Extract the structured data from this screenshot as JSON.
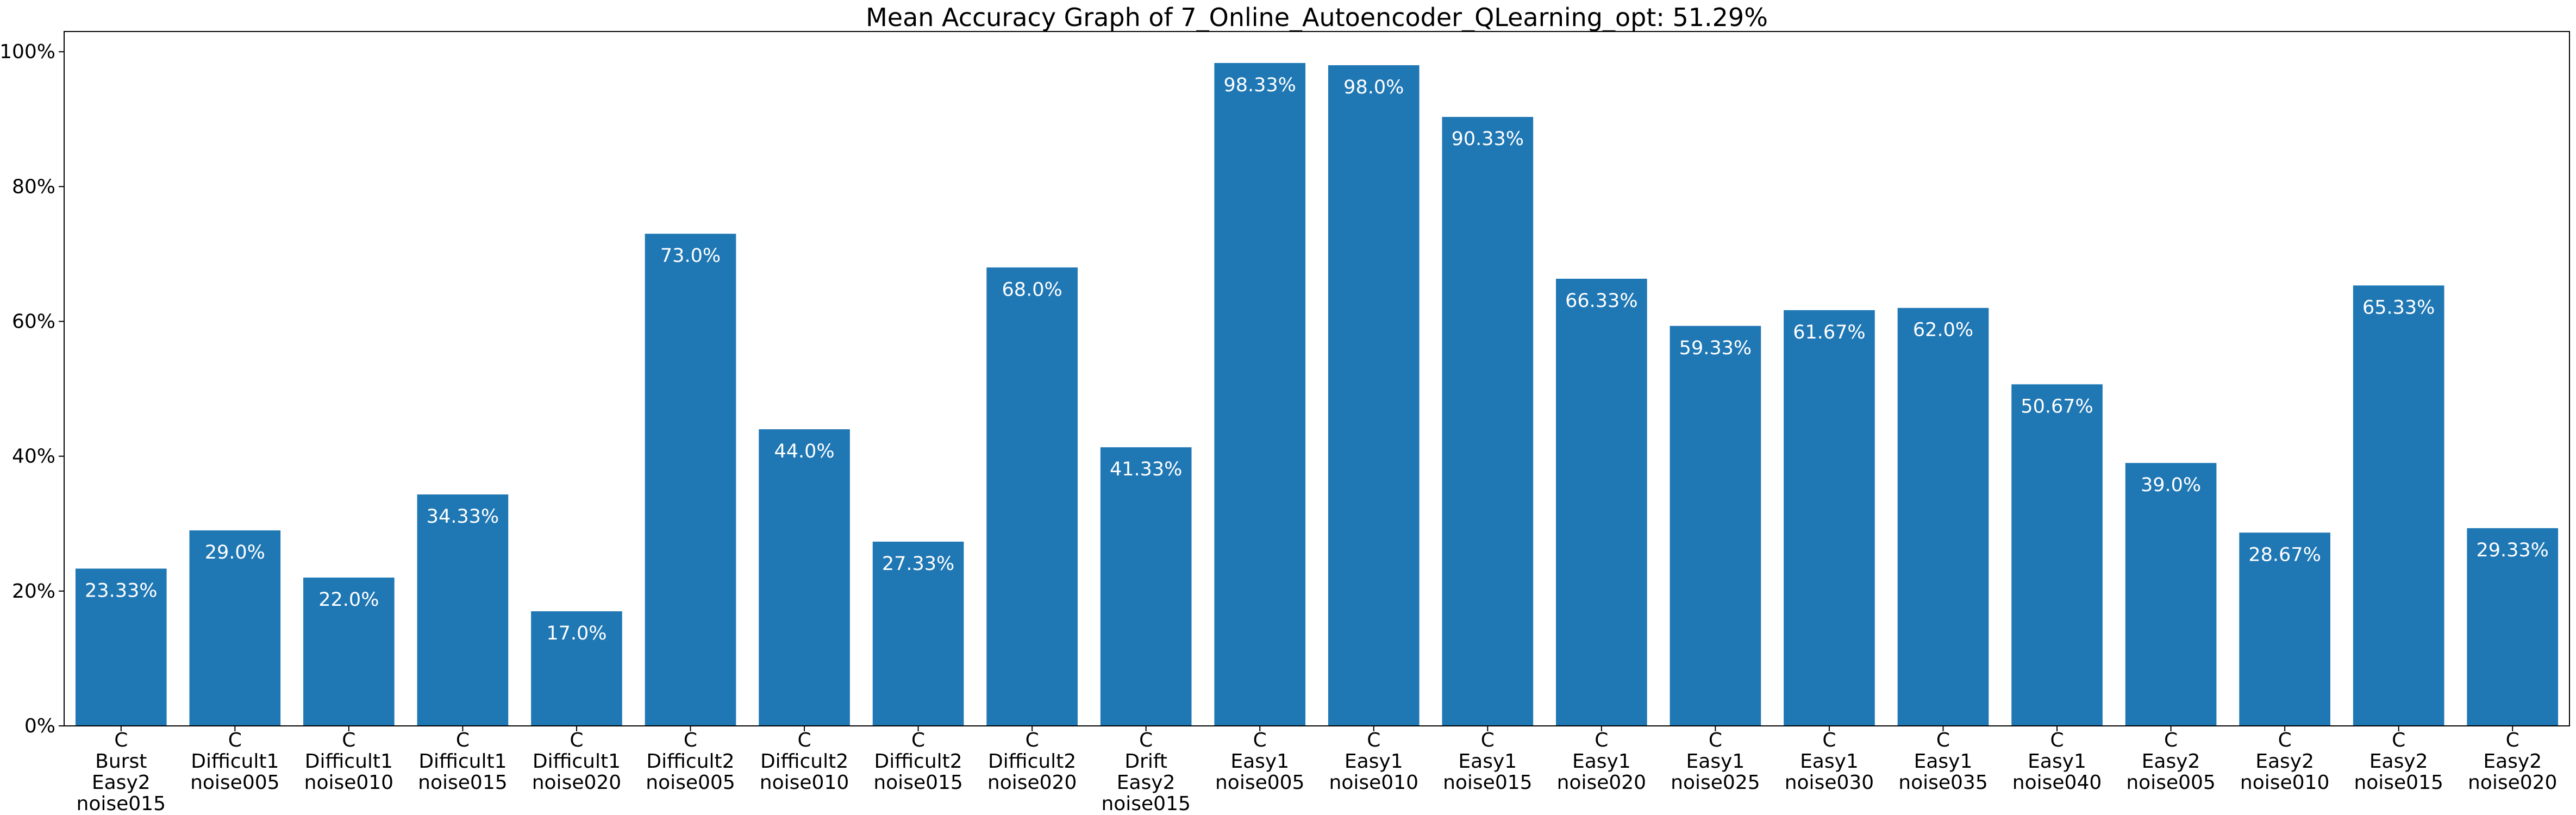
{
  "chart_data": {
    "type": "bar",
    "title": "Mean Accuracy Graph of 7_Online_Autoencoder_QLearning_opt: 51.29%",
    "xlabel": "",
    "ylabel": "",
    "ylim": [
      0,
      103
    ],
    "yticks": [
      0,
      20,
      40,
      60,
      80,
      100
    ],
    "ytick_labels": [
      "0%",
      "20%",
      "40%",
      "60%",
      "80%",
      "100%"
    ],
    "bar_color": "#1f77b4",
    "value_label_color": "#ffffff",
    "categories": [
      [
        "C",
        "Burst",
        "Easy2",
        "noise015"
      ],
      [
        "C",
        "Difficult1",
        "noise005"
      ],
      [
        "C",
        "Difficult1",
        "noise010"
      ],
      [
        "C",
        "Difficult1",
        "noise015"
      ],
      [
        "C",
        "Difficult1",
        "noise020"
      ],
      [
        "C",
        "Difficult2",
        "noise005"
      ],
      [
        "C",
        "Difficult2",
        "noise010"
      ],
      [
        "C",
        "Difficult2",
        "noise015"
      ],
      [
        "C",
        "Difficult2",
        "noise020"
      ],
      [
        "C",
        "Drift",
        "Easy2",
        "noise015"
      ],
      [
        "C",
        "Easy1",
        "noise005"
      ],
      [
        "C",
        "Easy1",
        "noise010"
      ],
      [
        "C",
        "Easy1",
        "noise015"
      ],
      [
        "C",
        "Easy1",
        "noise020"
      ],
      [
        "C",
        "Easy1",
        "noise025"
      ],
      [
        "C",
        "Easy1",
        "noise030"
      ],
      [
        "C",
        "Easy1",
        "noise035"
      ],
      [
        "C",
        "Easy1",
        "noise040"
      ],
      [
        "C",
        "Easy2",
        "noise005"
      ],
      [
        "C",
        "Easy2",
        "noise010"
      ],
      [
        "C",
        "Easy2",
        "noise015"
      ],
      [
        "C",
        "Easy2",
        "noise020"
      ]
    ],
    "values": [
      23.33,
      29.0,
      22.0,
      34.33,
      17.0,
      73.0,
      44.0,
      27.33,
      68.0,
      41.33,
      98.33,
      98.0,
      90.33,
      66.33,
      59.33,
      61.67,
      62.0,
      50.67,
      39.0,
      28.67,
      65.33,
      29.33
    ],
    "value_labels": [
      "23.33%",
      "29.0%",
      "22.0%",
      "34.33%",
      "17.0%",
      "73.0%",
      "44.0%",
      "27.33%",
      "68.0%",
      "41.33%",
      "98.33%",
      "98.0%",
      "90.33%",
      "66.33%",
      "59.33%",
      "61.67%",
      "62.0%",
      "50.67%",
      "39.0%",
      "28.67%",
      "65.33%",
      "29.33%"
    ]
  }
}
